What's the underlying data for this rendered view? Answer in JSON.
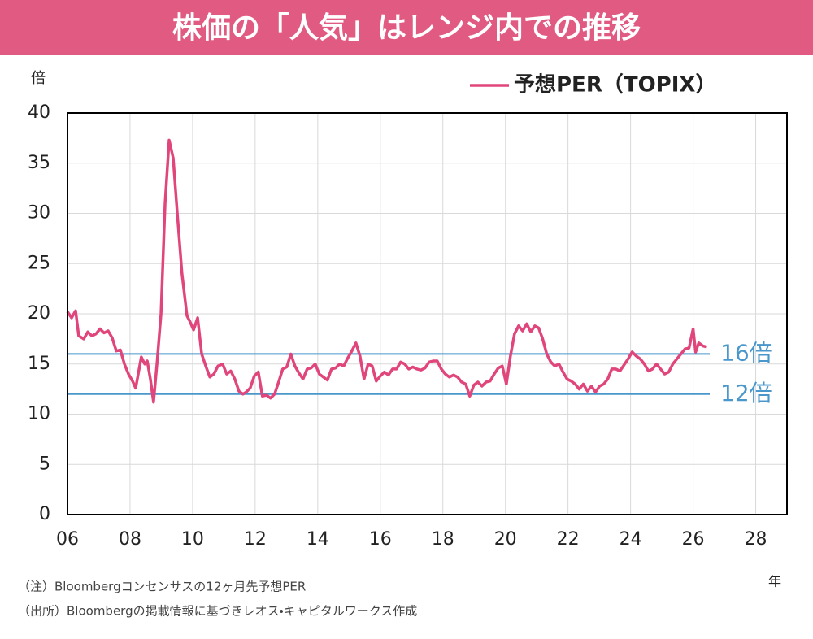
{
  "chart_data": {
    "type": "line",
    "title": "株価の「人気」はレンジ内での推移",
    "y_unit": "倍",
    "x_unit": "年",
    "legend": "top-right",
    "grid": true,
    "series": [
      {
        "name": "予想PER（TOPIX）",
        "color": "#e0457b",
        "x": [
          2006.0,
          2006.13,
          2006.26,
          2006.36,
          2006.52,
          2006.65,
          2006.78,
          2006.91,
          2007.04,
          2007.17,
          2007.3,
          2007.43,
          2007.56,
          2007.69,
          2007.82,
          2007.95,
          2008.08,
          2008.18,
          2008.29,
          2008.36,
          2008.47,
          2008.55,
          2008.65,
          2008.75,
          2008.86,
          2008.99,
          2009.12,
          2009.25,
          2009.38,
          2009.51,
          2009.66,
          2009.82,
          2009.92,
          2010.03,
          2010.16,
          2010.29,
          2010.42,
          2010.55,
          2010.68,
          2010.81,
          2010.96,
          2011.09,
          2011.22,
          2011.35,
          2011.48,
          2011.61,
          2011.71,
          2011.84,
          2011.97,
          2012.1,
          2012.23,
          2012.36,
          2012.49,
          2012.62,
          2012.75,
          2012.88,
          2013.01,
          2013.14,
          2013.27,
          2013.4,
          2013.53,
          2013.66,
          2013.79,
          2013.92,
          2014.05,
          2014.18,
          2014.31,
          2014.44,
          2014.57,
          2014.7,
          2014.83,
          2014.96,
          2015.09,
          2015.22,
          2015.35,
          2015.48,
          2015.61,
          2015.74,
          2015.87,
          2016.0,
          2016.13,
          2016.26,
          2016.39,
          2016.52,
          2016.65,
          2016.78,
          2016.91,
          2017.04,
          2017.17,
          2017.3,
          2017.43,
          2017.56,
          2017.69,
          2017.82,
          2017.95,
          2018.08,
          2018.21,
          2018.34,
          2018.47,
          2018.6,
          2018.73,
          2018.86,
          2018.99,
          2019.12,
          2019.25,
          2019.38,
          2019.51,
          2019.64,
          2019.77,
          2019.9,
          2020.03,
          2020.16,
          2020.29,
          2020.42,
          2020.55,
          2020.68,
          2020.81,
          2020.94,
          2021.06,
          2021.19,
          2021.32,
          2021.45,
          2021.58,
          2021.71,
          2021.84,
          2021.97,
          2022.1,
          2022.23,
          2022.36,
          2022.49,
          2022.62,
          2022.75,
          2022.88,
          2023.01,
          2023.14,
          2023.27,
          2023.4,
          2023.53,
          2023.66,
          2023.79,
          2023.92,
          2024.05,
          2024.18,
          2024.31,
          2024.44,
          2024.57,
          2024.7,
          2024.83,
          2024.96,
          2025.09,
          2025.22,
          2025.35,
          2025.48,
          2025.61,
          2025.74,
          2025.87,
          2026.0,
          2026.08,
          2026.18,
          2026.31,
          2026.44
        ],
        "values": [
          20.2,
          19.6,
          20.3,
          17.8,
          17.5,
          18.2,
          17.8,
          18.0,
          18.5,
          18.1,
          18.3,
          17.6,
          16.3,
          16.4,
          15.0,
          14.0,
          13.3,
          12.6,
          14.5,
          15.7,
          15.0,
          15.3,
          13.5,
          11.2,
          15.0,
          20.0,
          31.0,
          37.3,
          35.5,
          30.0,
          24.0,
          19.8,
          19.2,
          18.4,
          19.6,
          16.0,
          14.8,
          13.7,
          14.0,
          14.8,
          15.0,
          14.0,
          14.3,
          13.5,
          12.3,
          12.0,
          12.2,
          12.6,
          13.8,
          14.2,
          11.8,
          11.9,
          11.6,
          12.0,
          13.2,
          14.5,
          14.7,
          16.0,
          14.8,
          14.1,
          13.5,
          14.5,
          14.6,
          15.0,
          14.0,
          13.7,
          13.4,
          14.5,
          14.6,
          15.0,
          14.8,
          15.6,
          16.3,
          17.1,
          15.8,
          13.5,
          15.0,
          14.8,
          13.3,
          13.8,
          14.2,
          13.9,
          14.5,
          14.5,
          15.2,
          15.0,
          14.5,
          14.7,
          14.5,
          14.4,
          14.6,
          15.2,
          15.3,
          15.3,
          14.5,
          14.0,
          13.7,
          13.9,
          13.7,
          13.2,
          13.0,
          11.8,
          12.9,
          13.2,
          12.8,
          13.2,
          13.3,
          14.0,
          14.6,
          14.8,
          13.0,
          15.8,
          18.0,
          18.8,
          18.3,
          19.0,
          18.2,
          18.8,
          18.6,
          17.5,
          16.0,
          15.2,
          14.8,
          15.0,
          14.2,
          13.5,
          13.3,
          13.0,
          12.5,
          13.0,
          12.3,
          12.8,
          12.2,
          12.8,
          13.0,
          13.5,
          14.5,
          14.5,
          14.3,
          14.9,
          15.5,
          16.2,
          15.8,
          15.5,
          15.0,
          14.3,
          14.5,
          15.0,
          14.5,
          14.0,
          14.2,
          15.0,
          15.5,
          16.0,
          16.5,
          16.6,
          18.5,
          16.2,
          17.1,
          16.8,
          16.7
        ]
      }
    ],
    "reference_lines": [
      {
        "value": 16,
        "label": "16倍",
        "color": "#4a97cc"
      },
      {
        "value": 12,
        "label": "12倍",
        "color": "#4a97cc"
      }
    ],
    "xlim": [
      2006,
      2029
    ],
    "xticks": [
      {
        "value": 2006,
        "label": "06"
      },
      {
        "value": 2008,
        "label": "08"
      },
      {
        "value": 2010,
        "label": "10"
      },
      {
        "value": 2012,
        "label": "12"
      },
      {
        "value": 2014,
        "label": "14"
      },
      {
        "value": 2016,
        "label": "16"
      },
      {
        "value": 2018,
        "label": "18"
      },
      {
        "value": 2020,
        "label": "20"
      },
      {
        "value": 2022,
        "label": "22"
      },
      {
        "value": 2024,
        "label": "24"
      },
      {
        "value": 2026,
        "label": "26"
      },
      {
        "value": 2028,
        "label": "28"
      }
    ],
    "ylim": [
      0,
      40
    ],
    "yticks": [
      0,
      5,
      10,
      15,
      20,
      25,
      30,
      35,
      40
    ],
    "notes": [
      "（注）Bloombergコンセンサスの12ヶ月先予想PER",
      "（出所）Bloombergの掲載情報に基づきレオス・キャピタルワークス作成"
    ]
  }
}
